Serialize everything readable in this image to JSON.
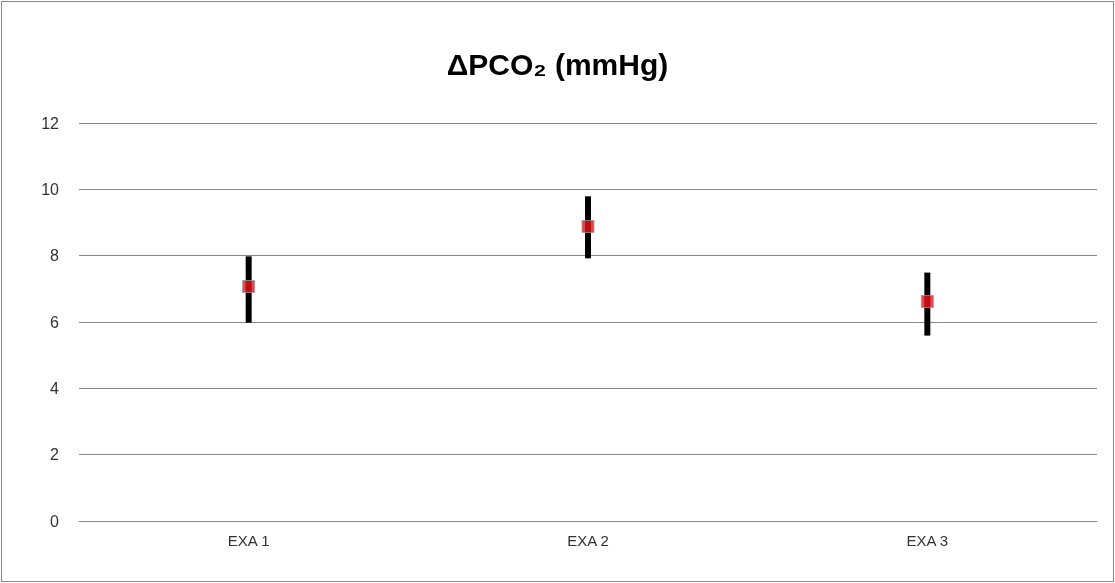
{
  "chart_data": {
    "type": "scatter",
    "title": "ΔPCO₂ (mmHg)",
    "categories": [
      "EXA 1",
      "EXA 2",
      "EXA 3"
    ],
    "series": [
      {
        "color": "#e8131a",
        "values": [
          7.07,
          8.88,
          6.62
        ],
        "errors": [
          [
            5.98,
            7.98
          ],
          [
            7.92,
            9.79
          ],
          [
            5.59,
            7.49
          ]
        ]
      }
    ],
    "ylim": [
      0,
      12
    ],
    "yticks": [
      0,
      2,
      4,
      6,
      8,
      10,
      12
    ],
    "grid": "y",
    "marker": "square"
  }
}
